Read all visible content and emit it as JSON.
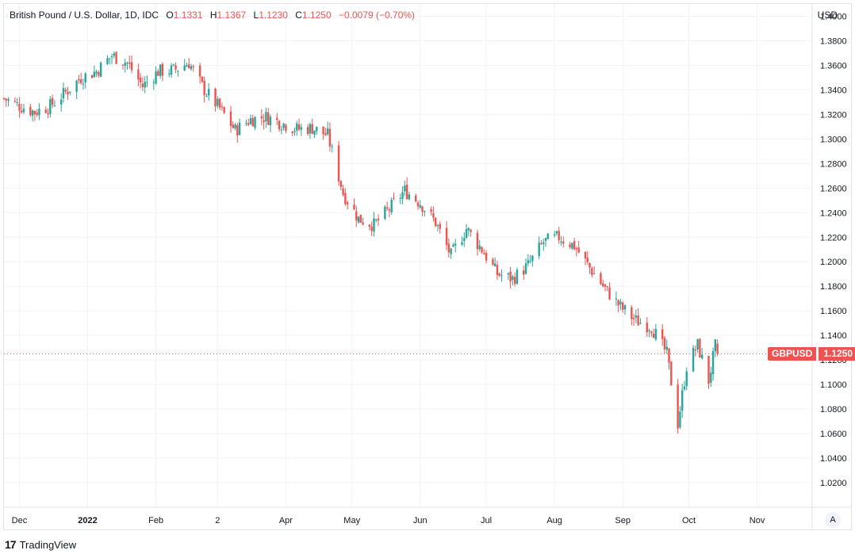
{
  "legend": {
    "symbol": "British Pound / U.S. Dollar, 1D, IDC",
    "o_label": "O",
    "o": "1.1331",
    "h_label": "H",
    "h": "1.1367",
    "l_label": "L",
    "l": "1.1230",
    "c_label": "C",
    "c": "1.1250",
    "change": "−0.0079 (−0.70%)"
  },
  "currency": "USD",
  "price_tag": {
    "symbol": "GBPUSD",
    "value": "1.1250"
  },
  "auto_label": "A",
  "footer": {
    "logo": "17",
    "brand": "TradingView"
  },
  "colors": {
    "up": "#26a69a",
    "down": "#ef5350",
    "grid": "#f0f3fa",
    "text": "#131722"
  },
  "chart_data": {
    "type": "candlestick",
    "title": "",
    "ylim": [
      1.0,
      1.41
    ],
    "y_ticks": [
      "1.4000",
      "1.3800",
      "1.3600",
      "1.3400",
      "1.3200",
      "1.3000",
      "1.2800",
      "1.2600",
      "1.2400",
      "1.2200",
      "1.2000",
      "1.1800",
      "1.1600",
      "1.1400",
      "1.1200",
      "1.1000",
      "1.0800",
      "1.0600",
      "1.0400",
      "1.0200"
    ],
    "x_ticks": [
      {
        "label": "Dec",
        "date": "2021-12-01",
        "bold": false
      },
      {
        "label": "2022",
        "date": "2022-01-01",
        "bold": true
      },
      {
        "label": "Feb",
        "date": "2022-02-01",
        "bold": false
      },
      {
        "label": "2",
        "date": "2022-03-01",
        "bold": false
      },
      {
        "label": "Apr",
        "date": "2022-04-01",
        "bold": false
      },
      {
        "label": "May",
        "date": "2022-05-01",
        "bold": false
      },
      {
        "label": "Jun",
        "date": "2022-06-01",
        "bold": false
      },
      {
        "label": "Jul",
        "date": "2022-07-01",
        "bold": false
      },
      {
        "label": "Aug",
        "date": "2022-08-01",
        "bold": false
      },
      {
        "label": "Sep",
        "date": "2022-09-01",
        "bold": false
      },
      {
        "label": "Oct",
        "date": "2022-10-01",
        "bold": false
      },
      {
        "label": "Nov",
        "date": "2022-11-01",
        "bold": false
      }
    ],
    "last_price": 1.125,
    "closes": [
      {
        "date": "2021-11-24",
        "c": 1.333
      },
      {
        "date": "2021-12-01",
        "c": 1.327
      },
      {
        "date": "2021-12-08",
        "c": 1.322
      },
      {
        "date": "2021-12-15",
        "c": 1.327
      },
      {
        "date": "2021-12-22",
        "c": 1.338
      },
      {
        "date": "2021-12-29",
        "c": 1.35
      },
      {
        "date": "2022-01-05",
        "c": 1.355
      },
      {
        "date": "2022-01-12",
        "c": 1.368
      },
      {
        "date": "2022-01-19",
        "c": 1.362
      },
      {
        "date": "2022-01-26",
        "c": 1.343
      },
      {
        "date": "2022-02-02",
        "c": 1.355
      },
      {
        "date": "2022-02-09",
        "c": 1.356
      },
      {
        "date": "2022-02-16",
        "c": 1.362
      },
      {
        "date": "2022-02-23",
        "c": 1.34
      },
      {
        "date": "2022-03-02",
        "c": 1.325
      },
      {
        "date": "2022-03-09",
        "c": 1.307
      },
      {
        "date": "2022-03-16",
        "c": 1.316
      },
      {
        "date": "2022-03-23",
        "c": 1.318
      },
      {
        "date": "2022-03-30",
        "c": 1.313
      },
      {
        "date": "2022-04-06",
        "c": 1.308
      },
      {
        "date": "2022-04-13",
        "c": 1.309
      },
      {
        "date": "2022-04-20",
        "c": 1.303
      },
      {
        "date": "2022-04-27",
        "c": 1.256
      },
      {
        "date": "2022-05-04",
        "c": 1.235
      },
      {
        "date": "2022-05-11",
        "c": 1.23
      },
      {
        "date": "2022-05-18",
        "c": 1.243
      },
      {
        "date": "2022-05-25",
        "c": 1.258
      },
      {
        "date": "2022-06-01",
        "c": 1.248
      },
      {
        "date": "2022-06-08",
        "c": 1.232
      },
      {
        "date": "2022-06-15",
        "c": 1.205
      },
      {
        "date": "2022-06-22",
        "c": 1.227
      },
      {
        "date": "2022-06-29",
        "c": 1.21
      },
      {
        "date": "2022-07-06",
        "c": 1.19
      },
      {
        "date": "2022-07-13",
        "c": 1.186
      },
      {
        "date": "2022-07-20",
        "c": 1.197
      },
      {
        "date": "2022-07-27",
        "c": 1.216
      },
      {
        "date": "2022-08-03",
        "c": 1.22
      },
      {
        "date": "2022-08-10",
        "c": 1.213
      },
      {
        "date": "2022-08-17",
        "c": 1.195
      },
      {
        "date": "2022-08-24",
        "c": 1.178
      },
      {
        "date": "2022-08-31",
        "c": 1.163
      },
      {
        "date": "2022-09-07",
        "c": 1.152
      },
      {
        "date": "2022-09-14",
        "c": 1.147
      },
      {
        "date": "2022-09-21",
        "c": 1.125
      },
      {
        "date": "2022-09-26",
        "c": 1.068
      },
      {
        "date": "2022-09-30",
        "c": 1.115
      },
      {
        "date": "2022-10-05",
        "c": 1.132
      },
      {
        "date": "2022-10-10",
        "c": 1.103
      },
      {
        "date": "2022-10-13",
        "c": 1.131
      },
      {
        "date": "2022-10-14",
        "c": 1.125
      }
    ]
  }
}
